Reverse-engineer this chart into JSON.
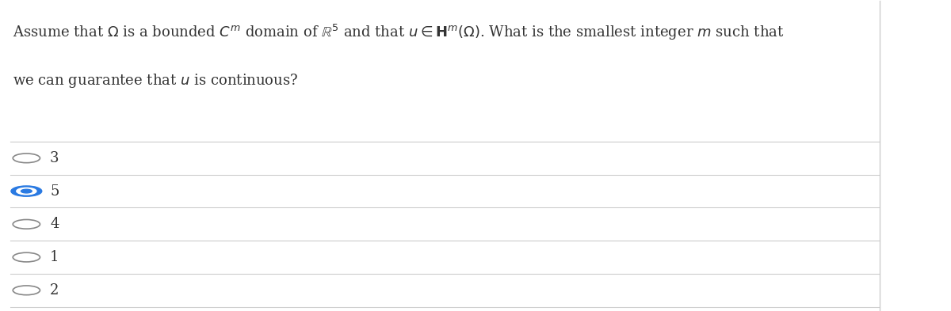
{
  "background_color": "#ffffff",
  "options": [
    "3",
    "5",
    "4",
    "1",
    "2"
  ],
  "selected_index": 1,
  "text_color": "#333333",
  "line_color": "#cccccc",
  "circle_unselected_color": "#888888",
  "circle_selected_color": "#2a7ae2",
  "option_fontsize": 13,
  "question_fontsize": 13,
  "fig_width": 12.0,
  "fig_height": 3.93
}
